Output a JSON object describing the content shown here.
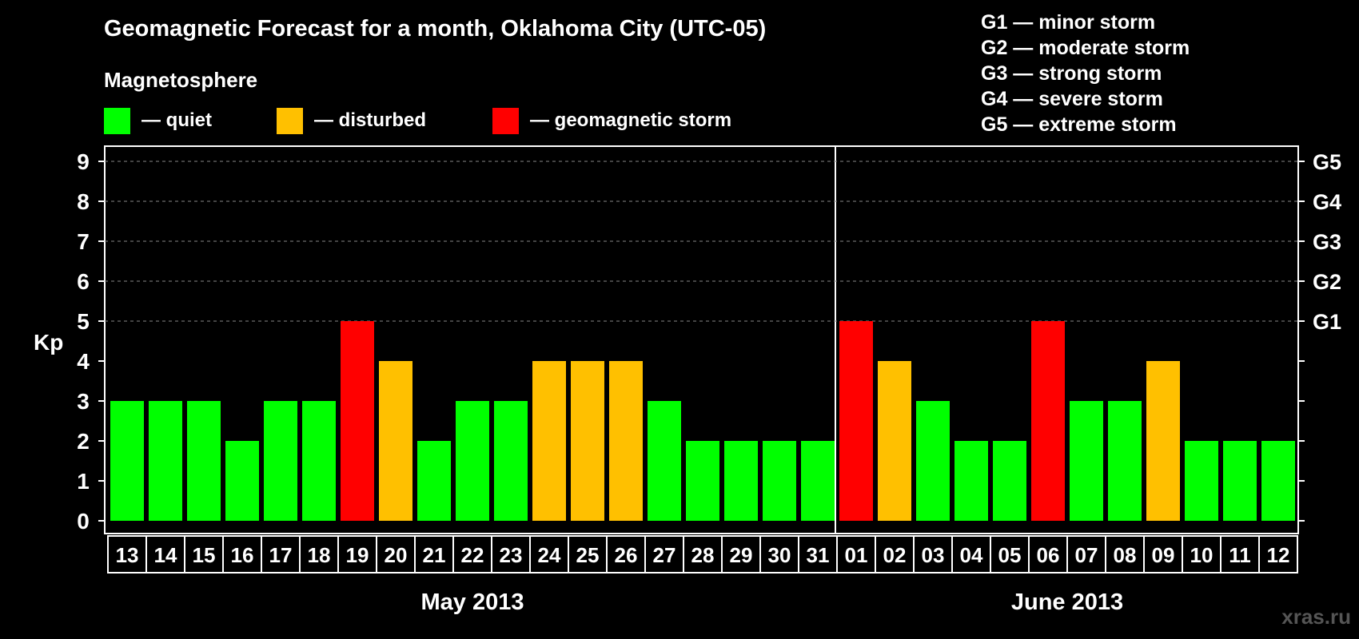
{
  "header": {
    "title": "Geomagnetic Forecast for a month, Oklahoma City (UTC-05)",
    "subtitle": "Magnetosphere"
  },
  "legend": [
    {
      "label": "— quiet",
      "color": "#00ff00"
    },
    {
      "label": "— disturbed",
      "color": "#ffc000"
    },
    {
      "label": "— geomagnetic storm",
      "color": "#ff0000"
    }
  ],
  "g_legend": [
    "G1 — minor storm",
    "G2 — moderate storm",
    "G3 — strong storm",
    "G4 — severe storm",
    "G5 — extreme storm"
  ],
  "watermark": "xras.ru",
  "chart_data": {
    "type": "bar",
    "title": "Geomagnetic Forecast for a month, Oklahoma City (UTC-05)",
    "ylabel": "Kp",
    "ylim": [
      0,
      9
    ],
    "yticks": [
      0,
      1,
      2,
      3,
      4,
      5,
      6,
      7,
      8,
      9
    ],
    "right_axis_labels": [
      {
        "kp": 5,
        "label": "G1"
      },
      {
        "kp": 6,
        "label": "G2"
      },
      {
        "kp": 7,
        "label": "G3"
      },
      {
        "kp": 8,
        "label": "G4"
      },
      {
        "kp": 9,
        "label": "G5"
      }
    ],
    "grid": "dashed horizontal from Kp 5 to 9",
    "categories": [
      "13",
      "14",
      "15",
      "16",
      "17",
      "18",
      "19",
      "20",
      "21",
      "22",
      "23",
      "24",
      "25",
      "26",
      "27",
      "28",
      "29",
      "30",
      "31",
      "01",
      "02",
      "03",
      "04",
      "05",
      "06",
      "07",
      "08",
      "09",
      "10",
      "11",
      "12"
    ],
    "values": [
      3,
      3,
      3,
      2,
      3,
      3,
      5,
      4,
      2,
      3,
      3,
      4,
      4,
      4,
      3,
      2,
      2,
      2,
      2,
      5,
      4,
      3,
      2,
      2,
      5,
      3,
      3,
      4,
      2,
      2,
      2
    ],
    "months": [
      {
        "label": "May 2013",
        "start": 0,
        "count": 19
      },
      {
        "label": "June 2013",
        "start": 19,
        "count": 12
      }
    ],
    "color_rule": {
      "quiet": "Kp <= 3",
      "disturbed": "Kp = 4",
      "storm": "Kp >= 5"
    },
    "colors": {
      "quiet": "#00ff00",
      "disturbed": "#ffc000",
      "storm": "#ff0000"
    }
  }
}
